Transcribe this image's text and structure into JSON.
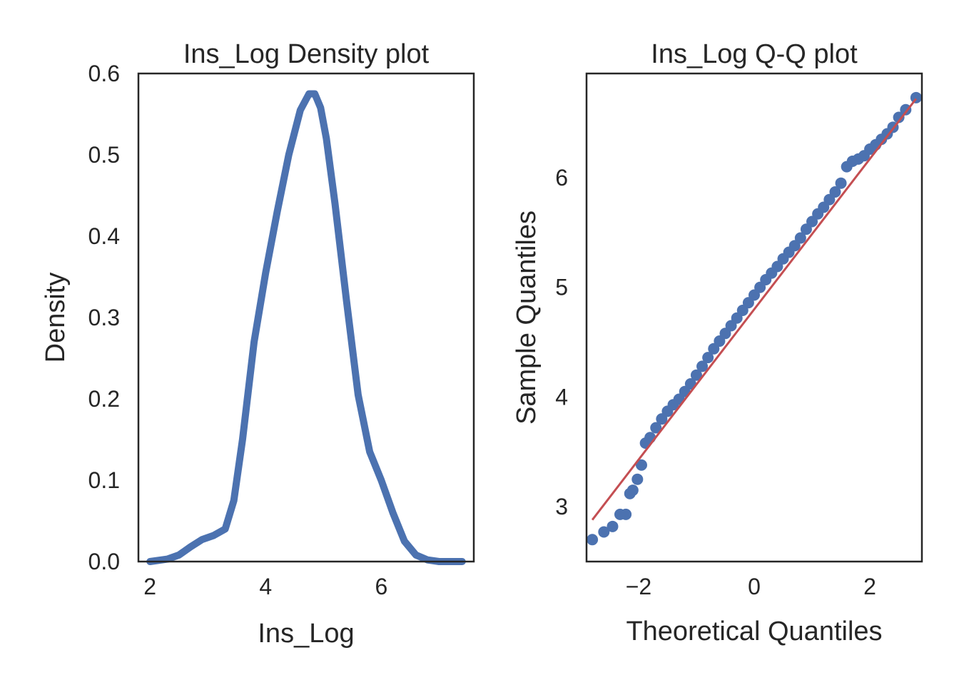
{
  "chart_data": [
    {
      "type": "line",
      "title": "Ins_Log Density plot",
      "xlabel": "Ins_Log",
      "ylabel": "Density",
      "xlim": [
        1.8,
        7.6
      ],
      "ylim": [
        0.0,
        0.6
      ],
      "xticks": [
        2,
        4,
        6
      ],
      "yticks": [
        0.0,
        0.1,
        0.2,
        0.3,
        0.4,
        0.5,
        0.6
      ],
      "xtick_labels": [
        "2",
        "4",
        "6"
      ],
      "ytick_labels": [
        "0.0",
        "0.1",
        "0.2",
        "0.3",
        "0.4",
        "0.5",
        "0.6"
      ],
      "grid": false,
      "series": [
        {
          "color": "#4c72b0",
          "x": [
            2.0,
            2.3,
            2.5,
            2.7,
            2.9,
            3.1,
            3.3,
            3.45,
            3.6,
            3.8,
            4.0,
            4.2,
            4.4,
            4.6,
            4.75,
            4.85,
            4.95,
            5.05,
            5.2,
            5.4,
            5.6,
            5.8,
            6.0,
            6.2,
            6.4,
            6.6,
            6.8,
            7.0,
            7.2,
            7.4
          ],
          "y": [
            0.0,
            0.003,
            0.008,
            0.018,
            0.027,
            0.032,
            0.04,
            0.075,
            0.15,
            0.27,
            0.355,
            0.43,
            0.5,
            0.555,
            0.575,
            0.575,
            0.558,
            0.52,
            0.44,
            0.32,
            0.205,
            0.135,
            0.1,
            0.06,
            0.025,
            0.008,
            0.002,
            0.0,
            0.0,
            0.0
          ]
        }
      ]
    },
    {
      "type": "scatter",
      "title": "Ins_Log Q-Q plot",
      "xlabel": "Theoretical Quantiles",
      "ylabel": "Sample Quantiles",
      "xlim": [
        -2.9,
        2.9
      ],
      "ylim": [
        2.5,
        6.95
      ],
      "xticks": [
        -2,
        0,
        2
      ],
      "yticks": [
        3,
        4,
        5,
        6
      ],
      "xtick_labels": [
        "−2",
        "0",
        "2"
      ],
      "ytick_labels": [
        "3",
        "4",
        "5",
        "6"
      ],
      "grid": false,
      "series": [
        {
          "color": "#4c72b0",
          "x": [
            -2.8,
            -2.6,
            -2.45,
            -2.32,
            -2.22,
            -2.15,
            -2.1,
            -2.02,
            -1.95,
            -1.88,
            -1.8,
            -1.7,
            -1.6,
            -1.5,
            -1.4,
            -1.3,
            -1.2,
            -1.1,
            -1.0,
            -0.9,
            -0.8,
            -0.7,
            -0.6,
            -0.5,
            -0.4,
            -0.3,
            -0.2,
            -0.1,
            0.0,
            0.1,
            0.2,
            0.3,
            0.4,
            0.5,
            0.6,
            0.7,
            0.8,
            0.9,
            1.0,
            1.1,
            1.2,
            1.3,
            1.4,
            1.5,
            1.6,
            1.7,
            1.8,
            1.9,
            2.0,
            2.1,
            2.2,
            2.3,
            2.4,
            2.5,
            2.62,
            2.8
          ],
          "y": [
            2.7,
            2.77,
            2.82,
            2.93,
            2.93,
            3.12,
            3.15,
            3.25,
            3.38,
            3.58,
            3.63,
            3.72,
            3.8,
            3.87,
            3.93,
            3.98,
            4.05,
            4.12,
            4.2,
            4.28,
            4.36,
            4.44,
            4.51,
            4.58,
            4.65,
            4.72,
            4.79,
            4.86,
            4.93,
            5.0,
            5.07,
            5.13,
            5.19,
            5.26,
            5.32,
            5.38,
            5.45,
            5.53,
            5.6,
            5.67,
            5.73,
            5.8,
            5.87,
            5.95,
            6.1,
            6.15,
            6.17,
            6.2,
            6.26,
            6.3,
            6.35,
            6.4,
            6.46,
            6.55,
            6.62,
            6.73
          ]
        },
        {
          "color": "#c44e52",
          "x": [
            -2.8,
            2.8
          ],
          "y": [
            2.88,
            6.72
          ]
        }
      ]
    }
  ]
}
